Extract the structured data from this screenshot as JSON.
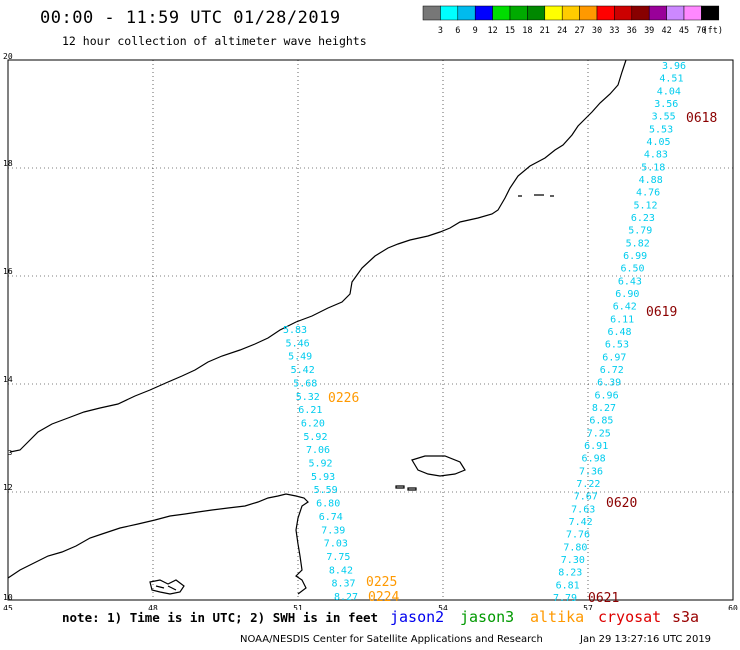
{
  "header": {
    "title": "00:00 - 11:59 UTC 01/28/2019",
    "subtitle": "12 hour collection of altimeter wave heights"
  },
  "scale": {
    "unit_label": "(ft)",
    "labels": [
      "3",
      "6",
      "9",
      "12",
      "15",
      "18",
      "21",
      "24",
      "27",
      "30",
      "33",
      "36",
      "39",
      "42",
      "45",
      "70"
    ],
    "colors": [
      "#777777",
      "#00ffff",
      "#00bbee",
      "#0000ff",
      "#00dd00",
      "#00aa00",
      "#008800",
      "#ffff00",
      "#ffcc00",
      "#ff9900",
      "#ff0000",
      "#cc0000",
      "#880000",
      "#990099",
      "#cc88ff",
      "#ff88ff",
      "#000000"
    ]
  },
  "axes": {
    "x_ticks": [
      "45",
      "48",
      "51",
      "54",
      "57",
      "60"
    ],
    "y_ticks": [
      "10",
      "12",
      "14",
      "16",
      "18",
      "20"
    ],
    "left_edge_label": "3"
  },
  "tracks": {
    "jason_color": "#00ccee",
    "east_values": [
      "3.96",
      "4.51",
      "4.04",
      "3.56",
      "3.55",
      "5.53",
      "4.05",
      "4.83",
      "5.18",
      "4.88",
      "4.76",
      "5.12",
      "6.23",
      "5.79",
      "5.82",
      "6.99",
      "6.50",
      "6.43",
      "6.90",
      "6.42",
      "6.11",
      "6.48",
      "6.53",
      "6.97",
      "6.72",
      "6.39",
      "6.96",
      "8.27",
      "6.85",
      "7.25",
      "6.91",
      "6.98",
      "7.36",
      "7.22",
      "7.67",
      "7.63",
      "7.42",
      "7.76",
      "7.80",
      "7.30",
      "8.23",
      "6.81",
      "7.79"
    ],
    "west_values": [
      "5.83",
      "5.46",
      "5.49",
      "5.42",
      "5.68",
      "5.32",
      "6.21",
      "6.20",
      "5.92",
      "7.06",
      "5.92",
      "5.93",
      "5.59",
      "6.80",
      "6.74",
      "7.39",
      "7.03",
      "7.75",
      "8.42",
      "8.37",
      "8.27"
    ]
  },
  "time_labels": [
    {
      "text": "0618",
      "color": "#8b0000"
    },
    {
      "text": "0619",
      "color": "#8b0000"
    },
    {
      "text": "0620",
      "color": "#8b0000"
    },
    {
      "text": "0621",
      "color": "#8b0000"
    },
    {
      "text": "0226",
      "color": "#ff9900"
    },
    {
      "text": "0225",
      "color": "#ff9900"
    },
    {
      "text": "0224",
      "color": "#ff9900"
    }
  ],
  "footer": {
    "note": "note: 1) Time is in UTC; 2) SWH is in feet",
    "legend": [
      {
        "label": "jason2",
        "color": "#0000ee"
      },
      {
        "label": "jason3",
        "color": "#009900"
      },
      {
        "label": "altika",
        "color": "#ff9900"
      },
      {
        "label": "cryosat",
        "color": "#dd0000"
      },
      {
        "label": "s3a",
        "color": "#990000"
      }
    ],
    "credit": "NOAA/NESDIS Center for Satellite Applications and Research",
    "timestamp": "Jan 29 13:27:16 UTC 2019"
  }
}
